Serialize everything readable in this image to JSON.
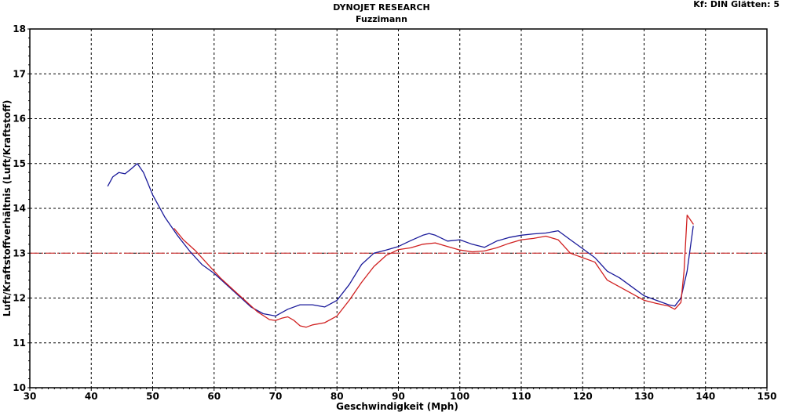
{
  "header": {
    "title": "DYNOJET RESEARCH",
    "subtitle": "Fuzzimann",
    "info": "Kf: DIN  Glätten: 5"
  },
  "chart_data": {
    "type": "line",
    "title": "DYNOJET RESEARCH",
    "subtitle": "Fuzzimann",
    "xlabel": "Geschwindigkeit (Mph)",
    "ylabel": "Luft/Kraftstoffverhältnis (Luft/Kraftstoff)",
    "xlim": [
      30,
      150
    ],
    "ylim": [
      10,
      18
    ],
    "xticks": [
      30,
      40,
      50,
      60,
      70,
      80,
      90,
      100,
      110,
      120,
      130,
      140,
      150
    ],
    "yticks": [
      10,
      11,
      12,
      13,
      14,
      15,
      16,
      17,
      18
    ],
    "grid": true,
    "reference_line": {
      "y": 13,
      "color": "#d04040"
    },
    "series": [
      {
        "color": "#1a1a9a",
        "points": [
          [
            42.7,
            14.5
          ],
          [
            43.5,
            14.7
          ],
          [
            44.5,
            14.8
          ],
          [
            45.5,
            14.77
          ],
          [
            46.5,
            14.88
          ],
          [
            47.5,
            15.0
          ],
          [
            48.5,
            14.8
          ],
          [
            50,
            14.3
          ],
          [
            52,
            13.8
          ],
          [
            54,
            13.4
          ],
          [
            56,
            13.05
          ],
          [
            58,
            12.75
          ],
          [
            60,
            12.55
          ],
          [
            62,
            12.3
          ],
          [
            64,
            12.05
          ],
          [
            66,
            11.8
          ],
          [
            68,
            11.65
          ],
          [
            70,
            11.6
          ],
          [
            72,
            11.75
          ],
          [
            74,
            11.85
          ],
          [
            76,
            11.85
          ],
          [
            78,
            11.8
          ],
          [
            80,
            11.95
          ],
          [
            82,
            12.3
          ],
          [
            84,
            12.75
          ],
          [
            86,
            13.0
          ],
          [
            88,
            13.07
          ],
          [
            90,
            13.15
          ],
          [
            92,
            13.28
          ],
          [
            94,
            13.4
          ],
          [
            95,
            13.44
          ],
          [
            96,
            13.4
          ],
          [
            98,
            13.27
          ],
          [
            100,
            13.3
          ],
          [
            102,
            13.2
          ],
          [
            104,
            13.13
          ],
          [
            106,
            13.27
          ],
          [
            108,
            13.35
          ],
          [
            110,
            13.4
          ],
          [
            112,
            13.43
          ],
          [
            114,
            13.45
          ],
          [
            116,
            13.5
          ],
          [
            118,
            13.3
          ],
          [
            120,
            13.1
          ],
          [
            122,
            12.9
          ],
          [
            124,
            12.6
          ],
          [
            126,
            12.45
          ],
          [
            128,
            12.25
          ],
          [
            130,
            12.05
          ],
          [
            132,
            11.95
          ],
          [
            134,
            11.85
          ],
          [
            135,
            11.82
          ],
          [
            136,
            12.0
          ],
          [
            137,
            12.6
          ],
          [
            138,
            13.6
          ]
        ]
      },
      {
        "color": "#d02020",
        "points": [
          [
            53.5,
            13.55
          ],
          [
            55,
            13.3
          ],
          [
            57,
            13.05
          ],
          [
            59,
            12.75
          ],
          [
            61,
            12.45
          ],
          [
            63,
            12.2
          ],
          [
            65,
            11.95
          ],
          [
            67,
            11.7
          ],
          [
            69,
            11.52
          ],
          [
            70,
            11.5
          ],
          [
            71,
            11.55
          ],
          [
            72,
            11.58
          ],
          [
            73,
            11.5
          ],
          [
            74,
            11.38
          ],
          [
            75,
            11.35
          ],
          [
            76,
            11.4
          ],
          [
            78,
            11.45
          ],
          [
            80,
            11.6
          ],
          [
            82,
            11.95
          ],
          [
            84,
            12.35
          ],
          [
            86,
            12.7
          ],
          [
            88,
            12.95
          ],
          [
            90,
            13.08
          ],
          [
            92,
            13.12
          ],
          [
            94,
            13.2
          ],
          [
            96,
            13.23
          ],
          [
            98,
            13.15
          ],
          [
            100,
            13.07
          ],
          [
            102,
            13.03
          ],
          [
            104,
            13.05
          ],
          [
            106,
            13.12
          ],
          [
            108,
            13.22
          ],
          [
            110,
            13.3
          ],
          [
            112,
            13.33
          ],
          [
            114,
            13.38
          ],
          [
            116,
            13.3
          ],
          [
            118,
            13.0
          ],
          [
            120,
            12.9
          ],
          [
            122,
            12.8
          ],
          [
            124,
            12.4
          ],
          [
            126,
            12.25
          ],
          [
            128,
            12.1
          ],
          [
            130,
            11.95
          ],
          [
            132,
            11.88
          ],
          [
            134,
            11.82
          ],
          [
            135,
            11.75
          ],
          [
            136,
            11.9
          ],
          [
            136.5,
            12.6
          ],
          [
            137,
            13.85
          ],
          [
            138,
            13.65
          ]
        ]
      }
    ]
  }
}
